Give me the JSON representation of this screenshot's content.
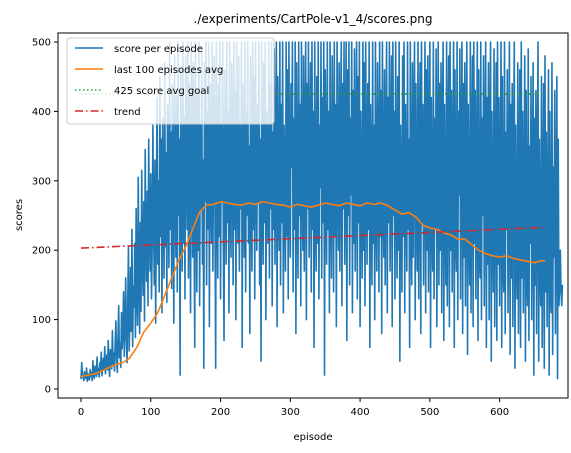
{
  "chart_data": {
    "type": "line",
    "title": "./experiments/CartPole-v1_4/scores.png",
    "xlabel": "episode",
    "ylabel": "scores",
    "xlim": [
      -33,
      698
    ],
    "ylim": [
      -13,
      513
    ],
    "xticks": [
      0,
      100,
      200,
      300,
      400,
      500,
      600
    ],
    "yticks": [
      0,
      100,
      200,
      300,
      400,
      500
    ],
    "legend_position": "top-left",
    "grid": false,
    "colors": {
      "score": "#1f77b4",
      "avg": "#ff7f0e",
      "goal": "#2ca02c",
      "trend": "#d62728"
    },
    "series": [
      {
        "name": "score per episode",
        "style": "solid",
        "color": "#1f77b4",
        "x_start": 0,
        "values": [
          14,
          38,
          21,
          17,
          12,
          25,
          19,
          15,
          30,
          11,
          22,
          16,
          13,
          28,
          18,
          24,
          12,
          41,
          20,
          15,
          33,
          26,
          18,
          46,
          22,
          29,
          17,
          38,
          25,
          53,
          19,
          31,
          44,
          27,
          61,
          22,
          35,
          49,
          28,
          70,
          33,
          18,
          57,
          40,
          29,
          84,
          36,
          52,
          26,
          67,
          98,
          41,
          24,
          73,
          120,
          45,
          66,
          31,
          110,
          58,
          85,
          140,
          47,
          92,
          160,
          71,
          38,
          128,
          205,
          55,
          96,
          175,
          83,
          230,
          61,
          148,
          118,
          210,
          74,
          260,
          132,
          92,
          305,
          168,
          80,
          240,
          112,
          315,
          190,
          135,
          270,
          98,
          345,
          210,
          155,
          285,
          120,
          360,
          230,
          170,
          310,
          130,
          205,
          380,
          245,
          150,
          330,
          95,
          265,
          420,
          180,
          300,
          140,
          450,
          220,
          360,
          110,
          390,
          270,
          160,
          470,
          205,
          340,
          125,
          410,
          290,
          175,
          500,
          230,
          370,
          145,
          440,
          260,
          95,
          480,
          310,
          190,
          420,
          140,
          500,
          250,
          360,
          20,
          460,
          300,
          170,
          500,
          210,
          390,
          130,
          480,
          320,
          230,
          500,
          160,
          440,
          280,
          110,
          500,
          350,
          190,
          470,
          240,
          60,
          500,
          300,
          140,
          430,
          200,
          500,
          120,
          380,
          260,
          490,
          180,
          330,
          30,
          470,
          270,
          500,
          150,
          400,
          230,
          500,
          90,
          440,
          310,
          210,
          500,
          170,
          350,
          480,
          250,
          30,
          500,
          290,
          160,
          440,
          220,
          500,
          130,
          380,
          270,
          500,
          200,
          70,
          460,
          320,
          180,
          500,
          240,
          400,
          110,
          500,
          280,
          190,
          470,
          350,
          150,
          500,
          230,
          430,
          100,
          500,
          310,
          210,
          480,
          170,
          380,
          260,
          500,
          60,
          440,
          300,
          190,
          500,
          140,
          400,
          250,
          500,
          210,
          350,
          80,
          480,
          290,
          170,
          500,
          230,
          450,
          130,
          500,
          320,
          200,
          410,
          270,
          500,
          150,
          360,
          40,
          500,
          280,
          180,
          470,
          240,
          500,
          100,
          400,
          310,
          210,
          500,
          160,
          440,
          260,
          500,
          120,
          370,
          230,
          490,
          180,
          330,
          500,
          90,
          450,
          280,
          200,
          500,
          150,
          410,
          240,
          500,
          110,
          380,
          300,
          170,
          500,
          220,
          460,
          130,
          500,
          270,
          190,
          440,
          320,
          500,
          140,
          390,
          230,
          500,
          80,
          470,
          290,
          160,
          500,
          250,
          410,
          120,
          500,
          310,
          200,
          480,
          170,
          360,
          500,
          100,
          440,
          260,
          500,
          190,
          330,
          470,
          140,
          500,
          230,
          400,
          60,
          500,
          280,
          170,
          450,
          210,
          500,
          130,
          380,
          290,
          500,
          160,
          420,
          240,
          500,
          20,
          460,
          310,
          180,
          500,
          230,
          400,
          110,
          500,
          270,
          160,
          480,
          340,
          140,
          500,
          220,
          410,
          90,
          500,
          300,
          200,
          470,
          170,
          370,
          500,
          120,
          440,
          260,
          500,
          180,
          350,
          500,
          70,
          460,
          250,
          500,
          150,
          390,
          280,
          500,
          110,
          430,
          210,
          490,
          170,
          320,
          500,
          130,
          450,
          240,
          500,
          90,
          400,
          270,
          160,
          500,
          200,
          470,
          120,
          500,
          330,
          180,
          440,
          230,
          500,
          60,
          410,
          290,
          150,
          500,
          210,
          380,
          100,
          500,
          260,
          170,
          470,
          320,
          140,
          500,
          220,
          430,
          80,
          500,
          280,
          190,
          460,
          150,
          360,
          500,
          110,
          420,
          240,
          500,
          170,
          340,
          480,
          90,
          500,
          250,
          400,
          130,
          500,
          290,
          160,
          450,
          200,
          500,
          40,
          380,
          270,
          140,
          480,
          220,
          500,
          110,
          410,
          300,
          170,
          500,
          230,
          360,
          60,
          500,
          260,
          150,
          470,
          190,
          390,
          500,
          100,
          440,
          250,
          170,
          500,
          130,
          350,
          470,
          80,
          500,
          240,
          410,
          150,
          330,
          500,
          110,
          460,
          200,
          480,
          140,
          370,
          500,
          60,
          420,
          260,
          170,
          500,
          130,
          390,
          230,
          490,
          90,
          340,
          500,
          150,
          440,
          200,
          470,
          110,
          380,
          500,
          70,
          410,
          250,
          150,
          500,
          120,
          360,
          480,
          90,
          500,
          200,
          430,
          140,
          320,
          500,
          60,
          460,
          230,
          170,
          500,
          100,
          400,
          280,
          490,
          130,
          350,
          500,
          80,
          440,
          190,
          470,
          120,
          370,
          500,
          50,
          410,
          240,
          150,
          500,
          110,
          340,
          480,
          90,
          500,
          210,
          430,
          130,
          300,
          500,
          70,
          460,
          190,
          160,
          500,
          100,
          390,
          250,
          480,
          120,
          330,
          500,
          60,
          420,
          180,
          470,
          100,
          360,
          500,
          40,
          400,
          220,
          140,
          490,
          90,
          310,
          470,
          70,
          500,
          180,
          420,
          120,
          280,
          500,
          60,
          450,
          170,
          140,
          500,
          80,
          370,
          230,
          460,
          110,
          300,
          500,
          50,
          410,
          160,
          440,
          90,
          340,
          500,
          30,
          380,
          200,
          130,
          470,
          80,
          290,
          460,
          60,
          500,
          160,
          400,
          110,
          260,
          480,
          40,
          430,
          150,
          120,
          490,
          70,
          350,
          210,
          450,
          100,
          280,
          470,
          20,
          390,
          150,
          430,
          80,
          320,
          500,
          40,
          360,
          180,
          120,
          450,
          60,
          260,
          440,
          30,
          480,
          140,
          370,
          90,
          230,
          460,
          20,
          400,
          130,
          110,
          470,
          50,
          320,
          190,
          430,
          80,
          250,
          450,
          15,
          360,
          120,
          150,
          200,
          140,
          120,
          150
        ]
      },
      {
        "name": "last 100 episodes avg",
        "style": "solid",
        "color": "#ff7f0e",
        "points": [
          [
            0,
            18
          ],
          [
            10,
            20
          ],
          [
            20,
            22
          ],
          [
            30,
            26
          ],
          [
            40,
            31
          ],
          [
            50,
            35
          ],
          [
            60,
            38
          ],
          [
            70,
            45
          ],
          [
            80,
            60
          ],
          [
            90,
            82
          ],
          [
            100,
            95
          ],
          [
            110,
            110
          ],
          [
            120,
            135
          ],
          [
            130,
            160
          ],
          [
            140,
            185
          ],
          [
            150,
            205
          ],
          [
            160,
            230
          ],
          [
            170,
            255
          ],
          [
            180,
            265
          ],
          [
            190,
            266
          ],
          [
            200,
            270
          ],
          [
            210,
            268
          ],
          [
            220,
            266
          ],
          [
            230,
            265
          ],
          [
            240,
            268
          ],
          [
            250,
            266
          ],
          [
            260,
            270
          ],
          [
            270,
            268
          ],
          [
            280,
            266
          ],
          [
            290,
            265
          ],
          [
            300,
            262
          ],
          [
            310,
            266
          ],
          [
            320,
            264
          ],
          [
            330,
            262
          ],
          [
            340,
            265
          ],
          [
            350,
            268
          ],
          [
            360,
            266
          ],
          [
            370,
            264
          ],
          [
            380,
            268
          ],
          [
            390,
            266
          ],
          [
            400,
            264
          ],
          [
            410,
            268
          ],
          [
            420,
            266
          ],
          [
            430,
            268
          ],
          [
            440,
            264
          ],
          [
            450,
            258
          ],
          [
            460,
            252
          ],
          [
            470,
            254
          ],
          [
            480,
            248
          ],
          [
            490,
            236
          ],
          [
            500,
            232
          ],
          [
            510,
            230
          ],
          [
            520,
            225
          ],
          [
            530,
            222
          ],
          [
            540,
            216
          ],
          [
            550,
            216
          ],
          [
            560,
            208
          ],
          [
            570,
            200
          ],
          [
            580,
            195
          ],
          [
            590,
            192
          ],
          [
            600,
            190
          ],
          [
            610,
            192
          ],
          [
            620,
            188
          ],
          [
            630,
            186
          ],
          [
            640,
            184
          ],
          [
            650,
            182
          ],
          [
            660,
            185
          ],
          [
            665,
            184
          ]
        ]
      },
      {
        "name": "425 score avg goal",
        "style": "dotted",
        "color": "#2ca02c",
        "points": [
          [
            0,
            425
          ],
          [
            665,
            425
          ]
        ]
      },
      {
        "name": "trend",
        "style": "dashdot",
        "color": "#d62728",
        "points": [
          [
            0,
            203
          ],
          [
            665,
            233
          ]
        ]
      }
    ]
  }
}
